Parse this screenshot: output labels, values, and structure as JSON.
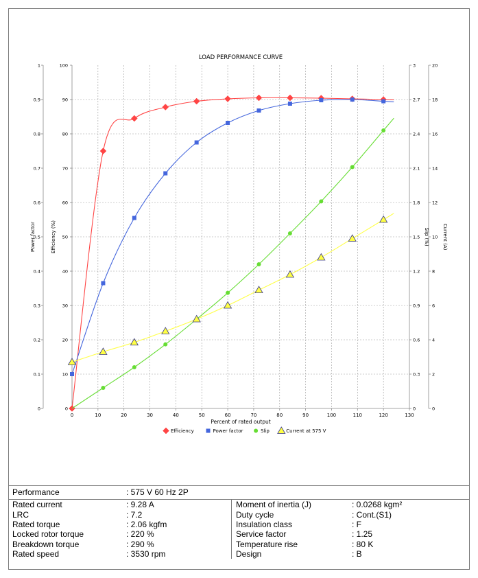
{
  "chart_data": {
    "type": "line",
    "title": "LOAD PERFORMANCE CURVE",
    "xlabel": "Percent of rated output",
    "xlim": [
      0,
      130
    ],
    "x_ticks": [
      "0",
      "10",
      "20",
      "30",
      "40",
      "50",
      "60",
      "70",
      "80",
      "90",
      "100",
      "110",
      "120",
      "130"
    ],
    "axes": {
      "power_factor": {
        "label": "Power factor",
        "ylim": [
          0,
          1
        ],
        "ticks": [
          "0",
          "0.1",
          "0.2",
          "0.3",
          "0.4",
          "0.5",
          "0.6",
          "0.7",
          "0.8",
          "0.9",
          "1"
        ]
      },
      "efficiency": {
        "label": "Efficiency (%)",
        "ylim": [
          0,
          100
        ],
        "ticks": [
          "0",
          "10",
          "20",
          "30",
          "40",
          "50",
          "60",
          "70",
          "80",
          "90",
          "100"
        ]
      },
      "slip": {
        "label": "Slip (%)",
        "ylim": [
          0,
          3
        ],
        "ticks": [
          "0",
          "0.3",
          "0.6",
          "0.9",
          "1.2",
          "1.5",
          "1.8",
          "2.1",
          "2.4",
          "2.7",
          "3"
        ]
      },
      "current": {
        "label": "Current (A)",
        "ylim": [
          0,
          20
        ],
        "ticks": [
          "0",
          "2",
          "4",
          "6",
          "8",
          "10",
          "12",
          "14",
          "16",
          "18",
          "20"
        ]
      }
    },
    "series": [
      {
        "name": "Efficiency",
        "axis": "efficiency",
        "color": "#ff4444",
        "marker": "diamond",
        "x": [
          0,
          12,
          24,
          36,
          48,
          60,
          72,
          84,
          96,
          108,
          120
        ],
        "values": [
          0,
          75,
          84.5,
          87.8,
          89.5,
          90.2,
          90.5,
          90.5,
          90.4,
          90.2,
          90
        ]
      },
      {
        "name": "Power factor",
        "axis": "power_factor",
        "color": "#4466dd",
        "marker": "square",
        "x": [
          0,
          12,
          24,
          36,
          48,
          60,
          72,
          84,
          96,
          108,
          120
        ],
        "values": [
          0.1,
          0.365,
          0.555,
          0.685,
          0.775,
          0.832,
          0.868,
          0.888,
          0.898,
          0.9,
          0.895
        ]
      },
      {
        "name": "Slip",
        "axis": "slip",
        "color": "#66dd33",
        "marker": "circle",
        "x": [
          12,
          24,
          36,
          48,
          60,
          72,
          84,
          96,
          108,
          120
        ],
        "values": [
          0.18,
          0.36,
          0.56,
          0.78,
          1.01,
          1.26,
          1.53,
          1.81,
          2.11,
          2.43
        ]
      },
      {
        "name": "Current at 575 V",
        "axis": "current",
        "color": "#ffff44",
        "marker": "triangle",
        "x": [
          0,
          12,
          24,
          36,
          48,
          60,
          72,
          84,
          96,
          108,
          120
        ],
        "values": [
          2.7,
          3.3,
          3.85,
          4.5,
          5.2,
          6.0,
          6.9,
          7.8,
          8.8,
          9.9,
          11.0
        ]
      }
    ],
    "grid": true,
    "legend_position": "bottom"
  },
  "specs": {
    "performance_label": "Performance",
    "performance_value": ": 575 V 60 Hz 2P",
    "left": [
      {
        "label": "Rated current",
        "value": ": 9.28 A"
      },
      {
        "label": "LRC",
        "value": ": 7.2"
      },
      {
        "label": "Rated torque",
        "value": ": 2.06 kgfm"
      },
      {
        "label": "Locked rotor torque",
        "value": ": 220 %"
      },
      {
        "label": "Breakdown torque",
        "value": ": 290 %"
      },
      {
        "label": "Rated speed",
        "value": ": 3530 rpm"
      }
    ],
    "right": [
      {
        "label": "Moment of inertia (J)",
        "value": ": 0.0268 kgm²"
      },
      {
        "label": "Duty cycle",
        "value": ": Cont.(S1)"
      },
      {
        "label": "Insulation class",
        "value": ": F"
      },
      {
        "label": "Service factor",
        "value": ": 1.25"
      },
      {
        "label": "Temperature rise",
        "value": ": 80 K"
      },
      {
        "label": "Design",
        "value": ": B"
      }
    ]
  }
}
